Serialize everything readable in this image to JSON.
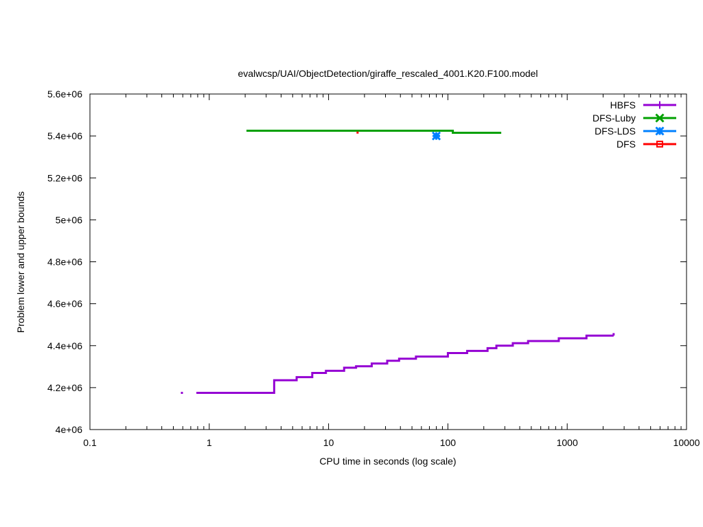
{
  "chart_data": {
    "type": "line",
    "title": "evalwcsp/UAI/ObjectDetection/giraffe_rescaled_4001.K20.F100.model",
    "xlabel": "CPU time in seconds (log scale)",
    "ylabel": "Problem lower and upper bounds",
    "xscale": "log",
    "xlim": [
      0.1,
      10000
    ],
    "ylim": [
      4000000,
      5600000
    ],
    "x_ticks": [
      0.1,
      1,
      10,
      100,
      1000,
      10000
    ],
    "x_tick_labels": [
      "0.1",
      "1",
      "10",
      "100",
      "1000",
      "10000"
    ],
    "y_ticks": [
      4000000,
      4200000,
      4400000,
      4600000,
      4800000,
      5000000,
      5200000,
      5400000,
      5600000
    ],
    "y_tick_labels": [
      "4e+06",
      "4.2e+06",
      "4.4e+06",
      "4.6e+06",
      "4.8e+06",
      "5e+06",
      "5.2e+06",
      "5.4e+06",
      "5.6e+06"
    ],
    "grid": false,
    "legend_position": "top-right",
    "series": [
      {
        "name": "HBFS",
        "color": "#9400d3",
        "marker": "plus",
        "steps": [
          [
            0.78,
            4175000
          ],
          [
            3.5,
            4235000
          ],
          [
            5.4,
            4250000
          ],
          [
            7.3,
            4270000
          ],
          [
            9.5,
            4280000
          ],
          [
            13.5,
            4295000
          ],
          [
            17,
            4302000
          ],
          [
            23,
            4315000
          ],
          [
            31,
            4328000
          ],
          [
            39,
            4338000
          ],
          [
            54,
            4348000
          ],
          [
            100,
            4365000
          ],
          [
            145,
            4375000
          ],
          [
            215,
            4388000
          ],
          [
            255,
            4400000
          ],
          [
            350,
            4412000
          ],
          [
            470,
            4422000
          ],
          [
            850,
            4435000
          ],
          [
            1450,
            4448000
          ],
          [
            2450,
            4448000
          ]
        ],
        "points": [
          [
            2450,
            4460000
          ]
        ],
        "extra_marks": [
          [
            0.59,
            4175000
          ]
        ]
      },
      {
        "name": "DFS-Luby",
        "color": "#00a000",
        "marker": "x",
        "steps": [
          [
            2.05,
            5425000
          ],
          [
            110,
            5415000
          ],
          [
            280,
            5415000
          ]
        ],
        "points": []
      },
      {
        "name": "DFS-LDS",
        "color": "#0080ff",
        "marker": "star",
        "steps": [],
        "points": [
          [
            80,
            5400000
          ]
        ]
      },
      {
        "name": "DFS",
        "color": "#ff0000",
        "marker": "square",
        "steps": [],
        "points": [],
        "extra_marks": [
          [
            17.5,
            5416000
          ]
        ]
      }
    ]
  }
}
